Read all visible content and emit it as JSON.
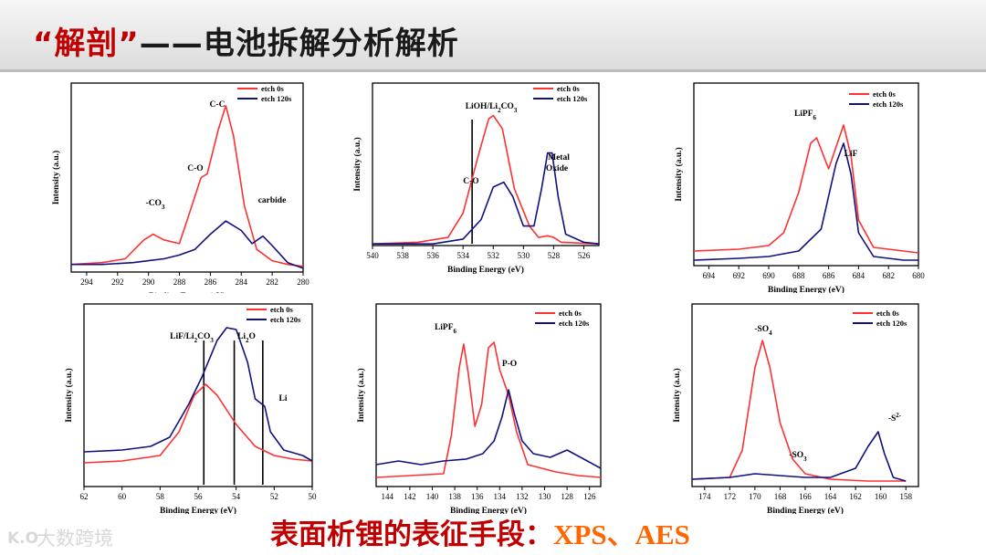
{
  "slide": {
    "title_quoted": "“解剖”",
    "title_rest": "——电池拆解分析解析",
    "caption_cn": "表面析锂的表征手段：",
    "caption_methods": "XPS、AES",
    "watermark_logo": "K.O",
    "watermark_text": "大数跨境",
    "colors": {
      "accent": "#c00000",
      "orange": "#ff6600",
      "red_series": "#ff3030",
      "blue_series": "#101080"
    }
  },
  "chart_data": [
    {
      "type": "line",
      "xlabel": "Binding Energy (eV)",
      "ylabel": "Intensity (a.u.)",
      "xlim": [
        295,
        280
      ],
      "ylim": [
        0,
        1
      ],
      "xticks": [
        294,
        292,
        290,
        288,
        286,
        284,
        282,
        280
      ],
      "legend": "top-right",
      "series": [
        {
          "name": "etch 0s",
          "color": "#ff3030",
          "points": [
            [
              295,
              0.04
            ],
            [
              293,
              0.05
            ],
            [
              291.5,
              0.07
            ],
            [
              290.3,
              0.17
            ],
            [
              289.7,
              0.2
            ],
            [
              289,
              0.17
            ],
            [
              288,
              0.15
            ],
            [
              287.2,
              0.35
            ],
            [
              286.6,
              0.5
            ],
            [
              286.2,
              0.52
            ],
            [
              285.5,
              0.75
            ],
            [
              285,
              0.88
            ],
            [
              284.5,
              0.72
            ],
            [
              283.8,
              0.35
            ],
            [
              283,
              0.12
            ],
            [
              282,
              0.06
            ],
            [
              281,
              0.04
            ],
            [
              280,
              0.03
            ]
          ]
        },
        {
          "name": "etch 120s",
          "color": "#101080",
          "points": [
            [
              295,
              0.04
            ],
            [
              293,
              0.04
            ],
            [
              291,
              0.05
            ],
            [
              290,
              0.06
            ],
            [
              289,
              0.07
            ],
            [
              288,
              0.09
            ],
            [
              287,
              0.12
            ],
            [
              286,
              0.2
            ],
            [
              285,
              0.27
            ],
            [
              284,
              0.22
            ],
            [
              283.3,
              0.15
            ],
            [
              282.6,
              0.19
            ],
            [
              282,
              0.14
            ],
            [
              281,
              0.05
            ],
            [
              280,
              0.02
            ]
          ]
        }
      ],
      "annotations": [
        {
          "text": "C-C"
        },
        {
          "text": "C-O"
        },
        {
          "text": "-CO",
          "sub": "3"
        },
        {
          "text": "carbide"
        }
      ]
    },
    {
      "type": "line",
      "xlabel": "Binding Energy (eV)",
      "ylabel": "Intensity (a.u.)",
      "xlim": [
        540,
        525
      ],
      "ylim": [
        0,
        1
      ],
      "xticks": [
        540,
        538,
        536,
        534,
        532,
        530,
        528,
        526
      ],
      "legend": "top-right",
      "series": [
        {
          "name": "etch 0s",
          "color": "#ff3030",
          "points": [
            [
              540,
              0.01
            ],
            [
              537,
              0.02
            ],
            [
              535,
              0.05
            ],
            [
              534,
              0.2
            ],
            [
              533,
              0.55
            ],
            [
              532.3,
              0.78
            ],
            [
              532,
              0.8
            ],
            [
              531.4,
              0.72
            ],
            [
              530.6,
              0.35
            ],
            [
              529.6,
              0.12
            ],
            [
              529,
              0.05
            ],
            [
              528.4,
              0.06
            ],
            [
              528,
              0.05
            ],
            [
              527.5,
              0.02
            ],
            [
              525,
              0.01
            ]
          ]
        },
        {
          "name": "etch 120s",
          "color": "#101080",
          "points": [
            [
              540,
              0.01
            ],
            [
              536,
              0.01
            ],
            [
              534,
              0.04
            ],
            [
              532.8,
              0.16
            ],
            [
              532,
              0.36
            ],
            [
              531.3,
              0.39
            ],
            [
              530.7,
              0.3
            ],
            [
              530,
              0.12
            ],
            [
              529.3,
              0.12
            ],
            [
              528.8,
              0.35
            ],
            [
              528.4,
              0.57
            ],
            [
              528.1,
              0.57
            ],
            [
              527.7,
              0.3
            ],
            [
              527.2,
              0.07
            ],
            [
              526,
              0.02
            ],
            [
              525,
              0.01
            ]
          ]
        }
      ],
      "vlines": [
        533.4
      ],
      "annotations": [
        {
          "text": "LiOH/Li",
          "sub": "2",
          "text2": "CO",
          "sub2": "3"
        },
        {
          "text": "C-O"
        },
        {
          "text": "Metal"
        },
        {
          "text": "Oxide"
        }
      ]
    },
    {
      "type": "line",
      "xlabel": "Binding Energy (eV)",
      "ylabel": "Intensity (a.u.)",
      "xlim": [
        695,
        680
      ],
      "ylim": [
        0,
        1
      ],
      "xticks": [
        694,
        692,
        690,
        688,
        686,
        684,
        682,
        680
      ],
      "legend": "top-right",
      "series": [
        {
          "name": "etch 0s",
          "color": "#ff3030",
          "points": [
            [
              695,
              0.08
            ],
            [
              692,
              0.09
            ],
            [
              690,
              0.11
            ],
            [
              689,
              0.18
            ],
            [
              688,
              0.4
            ],
            [
              687.2,
              0.67
            ],
            [
              686.8,
              0.7
            ],
            [
              686,
              0.53
            ],
            [
              685.5,
              0.65
            ],
            [
              685,
              0.77
            ],
            [
              684.5,
              0.6
            ],
            [
              684,
              0.25
            ],
            [
              683,
              0.1
            ],
            [
              681,
              0.08
            ],
            [
              680,
              0.07
            ]
          ]
        },
        {
          "name": "etch 120s",
          "color": "#101080",
          "points": [
            [
              695,
              0.03
            ],
            [
              692,
              0.04
            ],
            [
              690,
              0.05
            ],
            [
              688,
              0.08
            ],
            [
              686.5,
              0.2
            ],
            [
              686,
              0.38
            ],
            [
              685.5,
              0.56
            ],
            [
              685,
              0.67
            ],
            [
              684.5,
              0.5
            ],
            [
              684,
              0.18
            ],
            [
              683,
              0.05
            ],
            [
              681,
              0.03
            ],
            [
              680,
              0.03
            ]
          ]
        }
      ],
      "annotations": [
        {
          "text": "LiPF",
          "sub": "6"
        },
        {
          "text": "LiF"
        }
      ]
    },
    {
      "type": "line",
      "xlabel": "Binding Energy (eV)",
      "ylabel": "Intensity (a.u.)",
      "xlim": [
        62,
        50
      ],
      "ylim": [
        0,
        1
      ],
      "xticks": [
        62,
        60,
        58,
        56,
        54,
        52,
        50
      ],
      "legend": "top-right",
      "series": [
        {
          "name": "etch 0s",
          "color": "#ff3030",
          "points": [
            [
              62,
              0.13
            ],
            [
              60,
              0.14
            ],
            [
              58,
              0.17
            ],
            [
              57,
              0.3
            ],
            [
              56.2,
              0.5
            ],
            [
              55.6,
              0.56
            ],
            [
              55,
              0.5
            ],
            [
              54,
              0.34
            ],
            [
              53,
              0.22
            ],
            [
              52,
              0.17
            ],
            [
              51,
              0.15
            ],
            [
              50,
              0.14
            ]
          ]
        },
        {
          "name": "etch 120s",
          "color": "#101080",
          "points": [
            [
              62,
              0.19
            ],
            [
              60,
              0.2
            ],
            [
              58.5,
              0.22
            ],
            [
              57.5,
              0.27
            ],
            [
              56.5,
              0.45
            ],
            [
              55.8,
              0.6
            ],
            [
              55,
              0.8
            ],
            [
              54.5,
              0.87
            ],
            [
              54,
              0.86
            ],
            [
              53.4,
              0.68
            ],
            [
              53,
              0.48
            ],
            [
              52.5,
              0.44
            ],
            [
              52.2,
              0.3
            ],
            [
              51.5,
              0.2
            ],
            [
              50.5,
              0.17
            ],
            [
              50,
              0.14
            ]
          ]
        }
      ],
      "vlines": [
        55.7,
        54.1,
        52.6
      ],
      "annotations": [
        {
          "text": "LiF/Li",
          "sub": "2",
          "text2": "CO",
          "sub2": "3"
        },
        {
          "text": "Li",
          "sub": "2",
          "text2": "O"
        },
        {
          "text": "Li"
        }
      ]
    },
    {
      "type": "line",
      "xlabel": "Binding Energy (eV)",
      "ylabel": "Intensity (a.u.)",
      "xlim": [
        145,
        125
      ],
      "ylim": [
        0,
        1
      ],
      "xticks": [
        144,
        142,
        140,
        138,
        136,
        134,
        132,
        130,
        128,
        126
      ],
      "legend": "top-right",
      "series": [
        {
          "name": "etch 0s",
          "color": "#ff3030",
          "points": [
            [
              145,
              0.05
            ],
            [
              142,
              0.06
            ],
            [
              139,
              0.07
            ],
            [
              138.3,
              0.28
            ],
            [
              137.6,
              0.65
            ],
            [
              137.2,
              0.78
            ],
            [
              136.8,
              0.62
            ],
            [
              136.2,
              0.33
            ],
            [
              135.6,
              0.45
            ],
            [
              135,
              0.76
            ],
            [
              134.5,
              0.79
            ],
            [
              134,
              0.64
            ],
            [
              133.2,
              0.5
            ],
            [
              132.5,
              0.3
            ],
            [
              131.5,
              0.12
            ],
            [
              129,
              0.08
            ],
            [
              127,
              0.06
            ],
            [
              125,
              0.05
            ]
          ]
        },
        {
          "name": "etch 120s",
          "color": "#101080",
          "points": [
            [
              145,
              0.12
            ],
            [
              143,
              0.14
            ],
            [
              141,
              0.12
            ],
            [
              139,
              0.14
            ],
            [
              137,
              0.15
            ],
            [
              135.5,
              0.18
            ],
            [
              134.5,
              0.25
            ],
            [
              133.8,
              0.38
            ],
            [
              133.2,
              0.53
            ],
            [
              132.7,
              0.4
            ],
            [
              132,
              0.25
            ],
            [
              131,
              0.18
            ],
            [
              129.5,
              0.16
            ],
            [
              128,
              0.2
            ],
            [
              126.5,
              0.15
            ],
            [
              125,
              0.1
            ]
          ]
        }
      ],
      "annotations": [
        {
          "text": "LiPF",
          "sub": "6"
        },
        {
          "text": "P-O"
        }
      ]
    },
    {
      "type": "line",
      "xlabel": "Binding Energy (eV)",
      "ylabel": "Intensity (a.u.)",
      "xlim": [
        175,
        157
      ],
      "ylim": [
        0,
        1
      ],
      "xticks": [
        174,
        172,
        170,
        168,
        166,
        164,
        162,
        160,
        158
      ],
      "legend": "top-right",
      "series": [
        {
          "name": "etch 0s",
          "color": "#ff3030",
          "points": [
            [
              175,
              0.04
            ],
            [
              172,
              0.05
            ],
            [
              171,
              0.2
            ],
            [
              170,
              0.65
            ],
            [
              169.4,
              0.8
            ],
            [
              168.8,
              0.65
            ],
            [
              168,
              0.35
            ],
            [
              167,
              0.15
            ],
            [
              166,
              0.07
            ],
            [
              164,
              0.04
            ],
            [
              161,
              0.03
            ],
            [
              158,
              0.03
            ]
          ]
        },
        {
          "name": "etch 120s",
          "color": "#101080",
          "points": [
            [
              175,
              0.04
            ],
            [
              172,
              0.05
            ],
            [
              170,
              0.07
            ],
            [
              168,
              0.06
            ],
            [
              166,
              0.05
            ],
            [
              164,
              0.05
            ],
            [
              162,
              0.1
            ],
            [
              161,
              0.22
            ],
            [
              160.2,
              0.3
            ],
            [
              159.7,
              0.18
            ],
            [
              159,
              0.05
            ],
            [
              158,
              0.03
            ]
          ]
        }
      ],
      "annotations": [
        {
          "text": "-SO",
          "sub": "4"
        },
        {
          "text": "-SO",
          "sub": "3"
        },
        {
          "text": "-S",
          "sup": "2-"
        }
      ]
    }
  ]
}
